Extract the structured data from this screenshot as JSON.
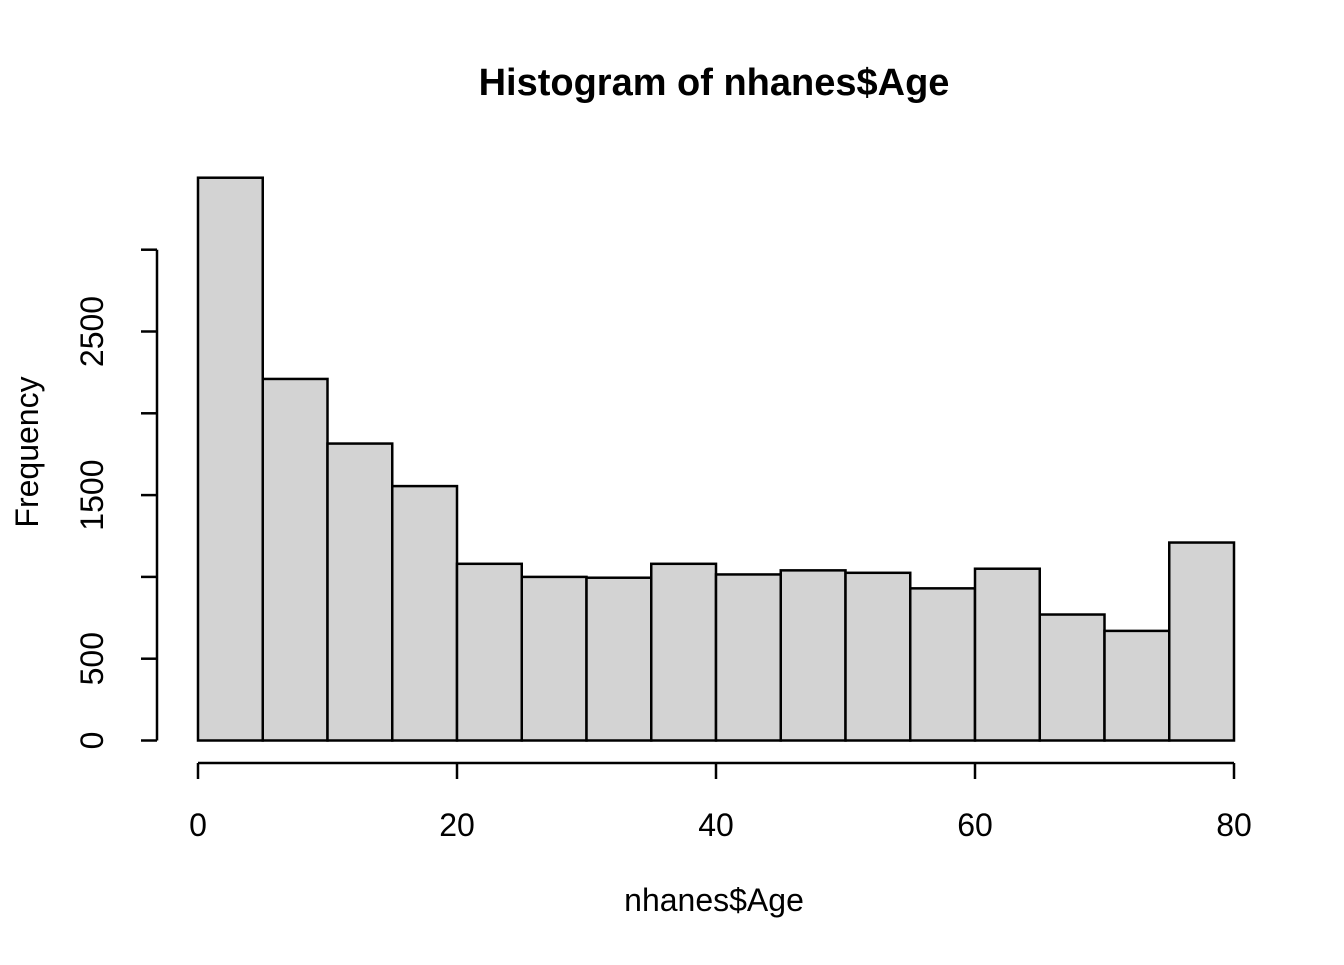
{
  "figure": {
    "background": "#ffffff"
  },
  "chart_data": {
    "type": "bar",
    "subtype": "histogram",
    "title": "Histogram of nhanes$Age",
    "xlabel": "nhanes$Age",
    "ylabel": "Frequency",
    "bin_start": 0,
    "bin_width": 5,
    "bin_edges": [
      0,
      5,
      10,
      15,
      20,
      25,
      30,
      35,
      40,
      45,
      50,
      55,
      60,
      65,
      70,
      75,
      80
    ],
    "counts": [
      3440,
      2210,
      1815,
      1555,
      1080,
      1000,
      995,
      1080,
      1015,
      1040,
      1025,
      930,
      1050,
      770,
      670,
      1210
    ],
    "xlim": [
      0,
      80
    ],
    "ylim": [
      0,
      3000
    ],
    "x_ticks": [
      0,
      20,
      40,
      60,
      80
    ],
    "x_tick_labels": [
      "0",
      "20",
      "40",
      "60",
      "80"
    ],
    "y_ticks": [
      0,
      500,
      1000,
      1500,
      2000,
      2500,
      3000
    ],
    "y_ticks_labeled": [
      0,
      500,
      1500,
      2500
    ],
    "y_tick_labels": [
      "0",
      "500",
      "1500",
      "2500"
    ],
    "grid": "off",
    "legend": "none",
    "bar_fill": "#d3d3d3",
    "bar_stroke": "#000000",
    "axis_color": "#000000",
    "background": "#ffffff"
  }
}
